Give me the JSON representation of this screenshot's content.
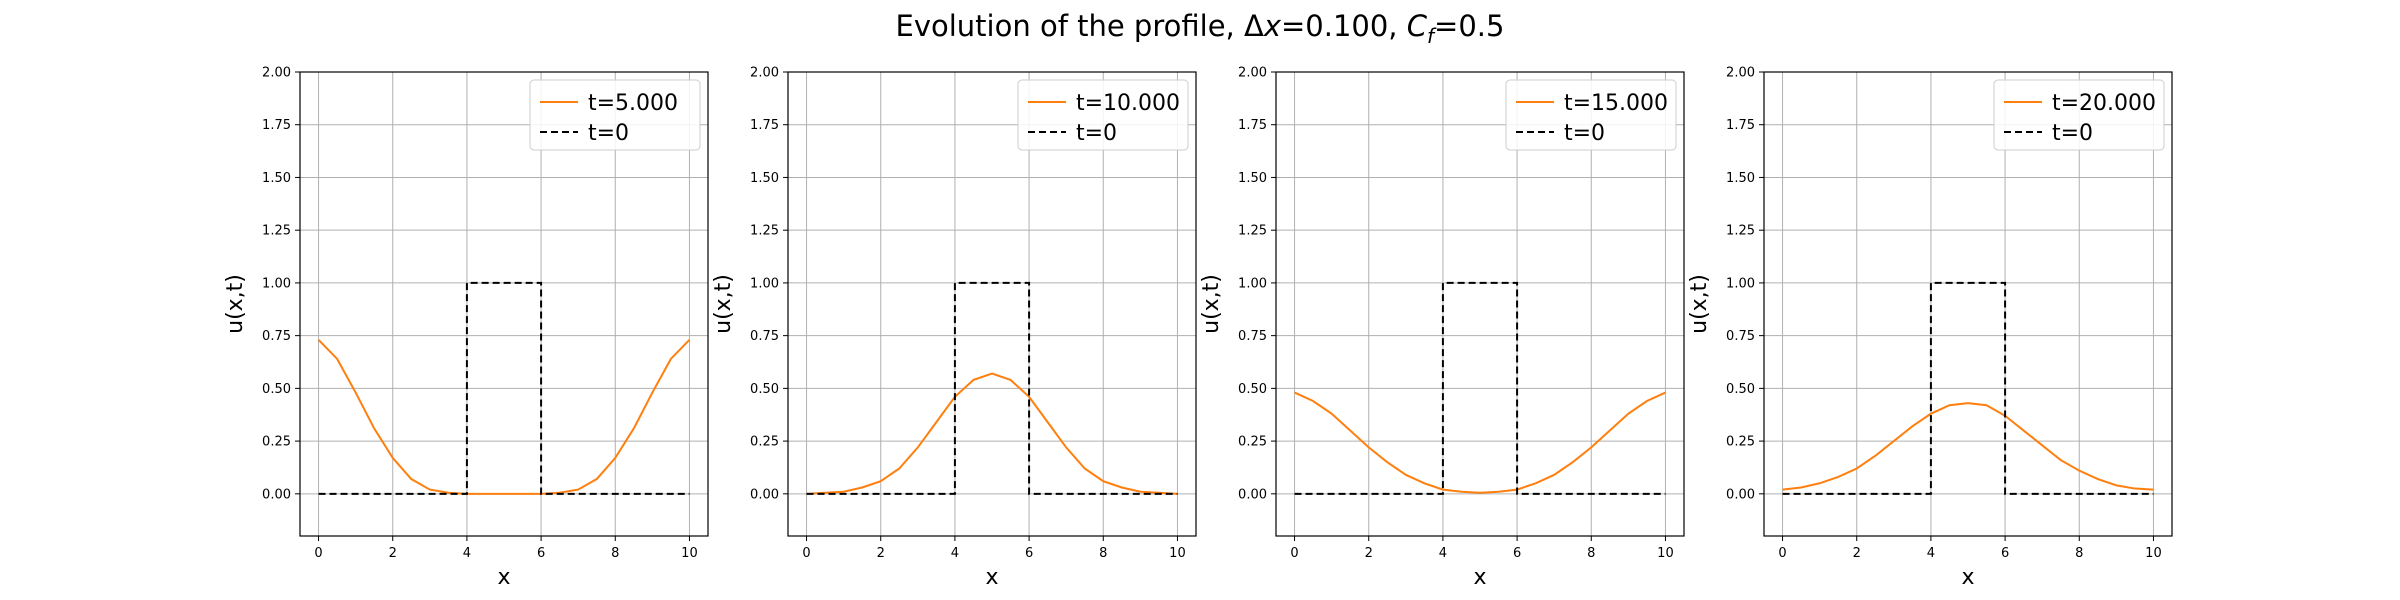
{
  "figure": {
    "title_pre": "Evolution of the profile, Δ",
    "title_x": "x",
    "title_mid": "=0.100, ",
    "title_c": "C",
    "title_sub": "f",
    "title_post": "=0.5"
  },
  "colors": {
    "numerical": "#ff7f0e",
    "initial": "#000000",
    "grid": "#b0b0b0"
  },
  "chart_data": [
    {
      "type": "line",
      "xlabel": "x",
      "ylabel": "u(x,t)",
      "xlim": [
        -0.5,
        10.5
      ],
      "ylim": [
        -0.2,
        2.0
      ],
      "xticks": [
        "0",
        "2",
        "4",
        "6",
        "8",
        "10"
      ],
      "yticks": [
        "0.00",
        "0.25",
        "0.50",
        "0.75",
        "1.00",
        "1.25",
        "1.50",
        "1.75",
        "2.00"
      ],
      "grid": true,
      "legend_position": "top-right",
      "series": [
        {
          "name": "t=5.000",
          "style": "solid",
          "x": [
            0,
            0.5,
            1,
            1.5,
            2,
            2.5,
            3,
            3.5,
            4,
            4.5,
            5,
            5.5,
            6,
            6.5,
            7,
            7.5,
            8,
            8.5,
            9,
            9.5,
            10
          ],
          "y": [
            0.73,
            0.64,
            0.48,
            0.31,
            0.17,
            0.07,
            0.02,
            0.005,
            0.0,
            0.0,
            0.0,
            0.0,
            0.0,
            0.005,
            0.02,
            0.07,
            0.17,
            0.31,
            0.48,
            0.64,
            0.73
          ]
        },
        {
          "name": "t=0",
          "style": "dashed",
          "x": [
            0,
            4,
            4,
            6,
            6,
            10
          ],
          "y": [
            0,
            0,
            1,
            1,
            0,
            0
          ]
        }
      ]
    },
    {
      "type": "line",
      "xlabel": "x",
      "ylabel": "u(x,t)",
      "xlim": [
        -0.5,
        10.5
      ],
      "ylim": [
        -0.2,
        2.0
      ],
      "xticks": [
        "0",
        "2",
        "4",
        "6",
        "8",
        "10"
      ],
      "yticks": [
        "0.00",
        "0.25",
        "0.50",
        "0.75",
        "1.00",
        "1.25",
        "1.50",
        "1.75",
        "2.00"
      ],
      "grid": true,
      "legend_position": "top-right",
      "series": [
        {
          "name": "t=10.000",
          "style": "solid",
          "x": [
            0,
            0.5,
            1,
            1.5,
            2,
            2.5,
            3,
            3.5,
            4,
            4.5,
            5,
            5.5,
            6,
            6.5,
            7,
            7.5,
            8,
            8.5,
            9,
            9.5,
            10
          ],
          "y": [
            0.0,
            0.005,
            0.01,
            0.03,
            0.06,
            0.12,
            0.22,
            0.34,
            0.46,
            0.54,
            0.57,
            0.54,
            0.46,
            0.34,
            0.22,
            0.12,
            0.06,
            0.03,
            0.01,
            0.005,
            0.0
          ]
        },
        {
          "name": "t=0",
          "style": "dashed",
          "x": [
            0,
            4,
            4,
            6,
            6,
            10
          ],
          "y": [
            0,
            0,
            1,
            1,
            0,
            0
          ]
        }
      ]
    },
    {
      "type": "line",
      "xlabel": "x",
      "ylabel": "u(x,t)",
      "xlim": [
        -0.5,
        10.5
      ],
      "ylim": [
        -0.2,
        2.0
      ],
      "xticks": [
        "0",
        "2",
        "4",
        "6",
        "8",
        "10"
      ],
      "yticks": [
        "0.00",
        "0.25",
        "0.50",
        "0.75",
        "1.00",
        "1.25",
        "1.50",
        "1.75",
        "2.00"
      ],
      "grid": true,
      "legend_position": "top-right",
      "series": [
        {
          "name": "t=15.000",
          "style": "solid",
          "x": [
            0,
            0.5,
            1,
            1.5,
            2,
            2.5,
            3,
            3.5,
            4,
            4.5,
            5,
            5.5,
            6,
            6.5,
            7,
            7.5,
            8,
            8.5,
            9,
            9.5,
            10
          ],
          "y": [
            0.48,
            0.44,
            0.38,
            0.3,
            0.22,
            0.15,
            0.09,
            0.05,
            0.02,
            0.01,
            0.005,
            0.01,
            0.02,
            0.05,
            0.09,
            0.15,
            0.22,
            0.3,
            0.38,
            0.44,
            0.48
          ]
        },
        {
          "name": "t=0",
          "style": "dashed",
          "x": [
            0,
            4,
            4,
            6,
            6,
            10
          ],
          "y": [
            0,
            0,
            1,
            1,
            0,
            0
          ]
        }
      ]
    },
    {
      "type": "line",
      "xlabel": "x",
      "ylabel": "u(x,t)",
      "xlim": [
        -0.5,
        10.5
      ],
      "ylim": [
        -0.2,
        2.0
      ],
      "xticks": [
        "0",
        "2",
        "4",
        "6",
        "8",
        "10"
      ],
      "yticks": [
        "0.00",
        "0.25",
        "0.50",
        "0.75",
        "1.00",
        "1.25",
        "1.50",
        "1.75",
        "2.00"
      ],
      "grid": true,
      "legend_position": "top-right",
      "series": [
        {
          "name": "t=20.000",
          "style": "solid",
          "x": [
            0,
            0.5,
            1,
            1.5,
            2,
            2.5,
            3,
            3.5,
            4,
            4.5,
            5,
            5.5,
            6,
            6.5,
            7,
            7.5,
            8,
            8.5,
            9,
            9.5,
            10
          ],
          "y": [
            0.02,
            0.03,
            0.05,
            0.08,
            0.12,
            0.18,
            0.25,
            0.32,
            0.38,
            0.42,
            0.43,
            0.42,
            0.37,
            0.3,
            0.23,
            0.16,
            0.11,
            0.07,
            0.04,
            0.025,
            0.02
          ]
        },
        {
          "name": "t=0",
          "style": "dashed",
          "x": [
            0,
            4,
            4,
            6,
            6,
            10
          ],
          "y": [
            0,
            0,
            1,
            1,
            0,
            0
          ]
        }
      ]
    }
  ]
}
